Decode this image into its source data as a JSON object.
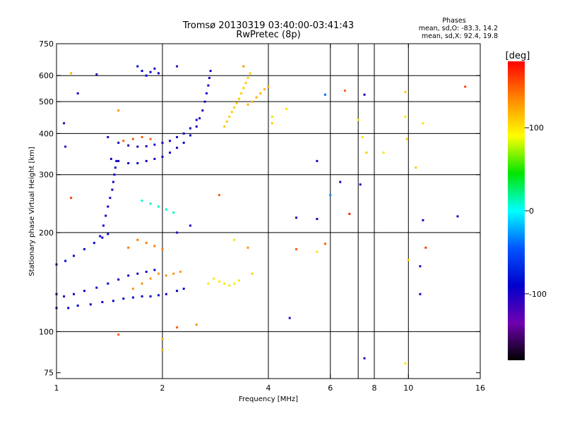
{
  "chart_data": {
    "type": "scatter",
    "title": "Tromsø 20130319 03:40:00-03:41:43",
    "subtitle": "RwPretec (8p)",
    "xlabel": "Frequency [MHz]",
    "ylabel": "Stationary phase Virtual Height [km]",
    "x_scale": "log",
    "y_scale": "log",
    "xlim": [
      1,
      16
    ],
    "ylim": [
      72,
      750
    ],
    "x_ticks": [
      1,
      2,
      4,
      6,
      8,
      10,
      16
    ],
    "x_tick_labels": [
      "1",
      "2",
      "4",
      "6",
      "8",
      "10",
      "16"
    ],
    "x_grid": [
      2,
      4,
      6,
      7.2,
      8,
      10
    ],
    "y_ticks": [
      75,
      100,
      200,
      300,
      400,
      500,
      600,
      750
    ],
    "y_tick_labels": [
      "75",
      "100",
      "200",
      "300",
      "400",
      "500",
      "600",
      "750"
    ],
    "y_grid": [
      100,
      200,
      300,
      400,
      500,
      600
    ],
    "grid": true,
    "phase_info": {
      "heading": "Phases",
      "o_mode": "mean, sd,O: -83.3, 14.2",
      "x_mode": "mean, sd,X:  92.4, 19.8"
    },
    "colorbar": {
      "label": "[deg]",
      "range": [
        -180,
        180
      ],
      "ticks": [
        100,
        0,
        -100
      ],
      "tick_labels": [
        "100",
        "0",
        "-100"
      ],
      "colors": [
        "#ff0000",
        "#ff8800",
        "#ffff00",
        "#00e600",
        "#00ffff",
        "#0055ff",
        "#0000cc",
        "#7000b0",
        "#000000"
      ]
    },
    "traces": [
      {
        "phase": -95,
        "points": [
          [
            1.0,
            130
          ],
          [
            1.05,
            128
          ],
          [
            1.12,
            130
          ],
          [
            1.2,
            133
          ],
          [
            1.3,
            136
          ],
          [
            1.4,
            140
          ],
          [
            1.5,
            144
          ],
          [
            1.6,
            148
          ],
          [
            1.7,
            150
          ],
          [
            1.8,
            152
          ],
          [
            1.9,
            154
          ]
        ]
      },
      {
        "phase": -90,
        "points": [
          [
            1.0,
            118
          ],
          [
            1.08,
            118
          ],
          [
            1.15,
            120
          ],
          [
            1.25,
            121
          ],
          [
            1.35,
            123
          ],
          [
            1.45,
            124
          ],
          [
            1.55,
            126
          ],
          [
            1.65,
            127
          ],
          [
            1.75,
            128
          ],
          [
            1.85,
            128
          ],
          [
            1.95,
            129
          ],
          [
            2.05,
            130
          ],
          [
            2.2,
            133
          ],
          [
            2.3,
            135
          ]
        ]
      },
      {
        "phase": -85,
        "points": [
          [
            1.0,
            160
          ],
          [
            1.06,
            164
          ],
          [
            1.12,
            170
          ],
          [
            1.2,
            178
          ],
          [
            1.28,
            186
          ],
          [
            1.35,
            193
          ],
          [
            1.4,
            198
          ]
        ]
      },
      {
        "phase": -95,
        "points": [
          [
            1.33,
            195
          ],
          [
            1.36,
            210
          ],
          [
            1.38,
            225
          ],
          [
            1.4,
            240
          ],
          [
            1.42,
            255
          ],
          [
            1.44,
            270
          ],
          [
            1.45,
            285
          ],
          [
            1.46,
            300
          ],
          [
            1.47,
            315
          ],
          [
            1.48,
            330
          ]
        ]
      },
      {
        "phase": -95,
        "points": [
          [
            1.43,
            335
          ],
          [
            1.5,
            330
          ],
          [
            1.6,
            325
          ],
          [
            1.7,
            325
          ],
          [
            1.8,
            330
          ],
          [
            1.9,
            335
          ],
          [
            2.0,
            340
          ],
          [
            2.1,
            350
          ],
          [
            2.2,
            362
          ],
          [
            2.3,
            375
          ],
          [
            2.4,
            395
          ],
          [
            2.5,
            420
          ],
          [
            2.55,
            445
          ],
          [
            2.6,
            470
          ],
          [
            2.64,
            500
          ],
          [
            2.67,
            530
          ],
          [
            2.7,
            560
          ],
          [
            2.72,
            590
          ],
          [
            2.74,
            620
          ]
        ]
      },
      {
        "phase": -100,
        "points": [
          [
            1.4,
            390
          ],
          [
            1.5,
            375
          ],
          [
            1.6,
            368
          ],
          [
            1.7,
            365
          ],
          [
            1.8,
            366
          ],
          [
            1.9,
            370
          ],
          [
            2.0,
            375
          ],
          [
            2.1,
            380
          ],
          [
            2.2,
            390
          ],
          [
            2.3,
            400
          ],
          [
            2.4,
            415
          ],
          [
            2.5,
            440
          ]
        ]
      },
      {
        "phase": -90,
        "points": [
          [
            1.7,
            640
          ],
          [
            1.75,
            620
          ],
          [
            1.8,
            600
          ],
          [
            1.85,
            615
          ],
          [
            1.9,
            630
          ],
          [
            1.95,
            610
          ]
        ]
      },
      {
        "phase": 110,
        "points": [
          [
            3.0,
            420
          ],
          [
            3.05,
            435
          ],
          [
            3.1,
            450
          ],
          [
            3.15,
            465
          ],
          [
            3.2,
            480
          ],
          [
            3.25,
            495
          ],
          [
            3.3,
            510
          ],
          [
            3.35,
            530
          ],
          [
            3.4,
            550
          ],
          [
            3.45,
            570
          ],
          [
            3.5,
            590
          ],
          [
            3.55,
            610
          ]
        ]
      },
      {
        "phase": 120,
        "points": [
          [
            3.5,
            490
          ],
          [
            3.6,
            500
          ],
          [
            3.7,
            515
          ],
          [
            3.8,
            530
          ],
          [
            3.9,
            545
          ],
          [
            4.0,
            555
          ]
        ]
      },
      {
        "phase": 130,
        "points": [
          [
            1.65,
            135
          ],
          [
            1.75,
            140
          ],
          [
            1.85,
            145
          ],
          [
            1.95,
            150
          ],
          [
            2.05,
            148
          ],
          [
            2.15,
            150
          ],
          [
            2.25,
            152
          ]
        ]
      },
      {
        "phase": 140,
        "points": [
          [
            1.6,
            180
          ],
          [
            1.7,
            190
          ],
          [
            1.8,
            186
          ],
          [
            1.9,
            182
          ],
          [
            2.0,
            178
          ]
        ]
      },
      {
        "phase": 150,
        "points": [
          [
            1.55,
            380
          ],
          [
            1.65,
            385
          ],
          [
            1.75,
            390
          ],
          [
            1.85,
            385
          ]
        ]
      },
      {
        "phase": 100,
        "points": [
          [
            2.7,
            140
          ],
          [
            2.8,
            145
          ],
          [
            2.9,
            142
          ],
          [
            3.0,
            140
          ],
          [
            3.1,
            138
          ],
          [
            3.2,
            140
          ],
          [
            3.3,
            143
          ]
        ]
      },
      {
        "phase": 10,
        "points": [
          [
            1.75,
            250
          ],
          [
            1.85,
            245
          ],
          [
            1.95,
            240
          ],
          [
            2.05,
            235
          ],
          [
            2.15,
            230
          ]
        ]
      }
    ],
    "scatter": [
      {
        "x": 5.8,
        "y": 525,
        "phase": -40
      },
      {
        "x": 6.6,
        "y": 540,
        "phase": 150
      },
      {
        "x": 7.5,
        "y": 525,
        "phase": -95
      },
      {
        "x": 7.2,
        "y": 440,
        "phase": 100
      },
      {
        "x": 7.4,
        "y": 390,
        "phase": 100
      },
      {
        "x": 7.6,
        "y": 350,
        "phase": 110
      },
      {
        "x": 9.8,
        "y": 535,
        "phase": 110
      },
      {
        "x": 9.8,
        "y": 450,
        "phase": 100
      },
      {
        "x": 9.9,
        "y": 385,
        "phase": 110
      },
      {
        "x": 11.0,
        "y": 430,
        "phase": 100
      },
      {
        "x": 14.5,
        "y": 555,
        "phase": 160
      },
      {
        "x": 10.5,
        "y": 315,
        "phase": 110
      },
      {
        "x": 8.5,
        "y": 350,
        "phase": 100
      },
      {
        "x": 5.5,
        "y": 330,
        "phase": -100
      },
      {
        "x": 6.0,
        "y": 260,
        "phase": -30
      },
      {
        "x": 6.4,
        "y": 285,
        "phase": -100
      },
      {
        "x": 6.8,
        "y": 228,
        "phase": 170
      },
      {
        "x": 7.3,
        "y": 280,
        "phase": -100
      },
      {
        "x": 5.5,
        "y": 220,
        "phase": -100
      },
      {
        "x": 4.8,
        "y": 222,
        "phase": -100
      },
      {
        "x": 11.0,
        "y": 218,
        "phase": -100
      },
      {
        "x": 13.8,
        "y": 224,
        "phase": -100
      },
      {
        "x": 11.2,
        "y": 180,
        "phase": 160
      },
      {
        "x": 10.0,
        "y": 165,
        "phase": 110
      },
      {
        "x": 10.8,
        "y": 158,
        "phase": -100
      },
      {
        "x": 10.8,
        "y": 130,
        "phase": -100
      },
      {
        "x": 4.8,
        "y": 178,
        "phase": 150
      },
      {
        "x": 5.5,
        "y": 175,
        "phase": 100
      },
      {
        "x": 5.8,
        "y": 185,
        "phase": 150
      },
      {
        "x": 4.6,
        "y": 110,
        "phase": -110
      },
      {
        "x": 7.5,
        "y": 83,
        "phase": -100
      },
      {
        "x": 9.8,
        "y": 80,
        "phase": 100
      },
      {
        "x": 3.5,
        "y": 180,
        "phase": 130
      },
      {
        "x": 3.2,
        "y": 190,
        "phase": 100
      },
      {
        "x": 3.6,
        "y": 150,
        "phase": 110
      },
      {
        "x": 4.1,
        "y": 450,
        "phase": 80
      },
      {
        "x": 4.5,
        "y": 475,
        "phase": 100
      },
      {
        "x": 4.1,
        "y": 430,
        "phase": 110
      },
      {
        "x": 1.05,
        "y": 430,
        "phase": -110
      },
      {
        "x": 1.06,
        "y": 365,
        "phase": -110
      },
      {
        "x": 1.1,
        "y": 610,
        "phase": 120
      },
      {
        "x": 1.15,
        "y": 530,
        "phase": -100
      },
      {
        "x": 1.3,
        "y": 605,
        "phase": -110
      },
      {
        "x": 1.1,
        "y": 255,
        "phase": 160
      },
      {
        "x": 1.5,
        "y": 470,
        "phase": 130
      },
      {
        "x": 2.2,
        "y": 200,
        "phase": -100
      },
      {
        "x": 2.4,
        "y": 210,
        "phase": -100
      },
      {
        "x": 1.5,
        "y": 98,
        "phase": 150
      },
      {
        "x": 2.0,
        "y": 88,
        "phase": 120
      },
      {
        "x": 2.2,
        "y": 103,
        "phase": 150
      },
      {
        "x": 2.5,
        "y": 105,
        "phase": 130
      },
      {
        "x": 2.0,
        "y": 95,
        "phase": 120
      },
      {
        "x": 2.9,
        "y": 260,
        "phase": 150
      },
      {
        "x": 3.4,
        "y": 640,
        "phase": 130
      },
      {
        "x": 2.2,
        "y": 640,
        "phase": -110
      }
    ]
  }
}
